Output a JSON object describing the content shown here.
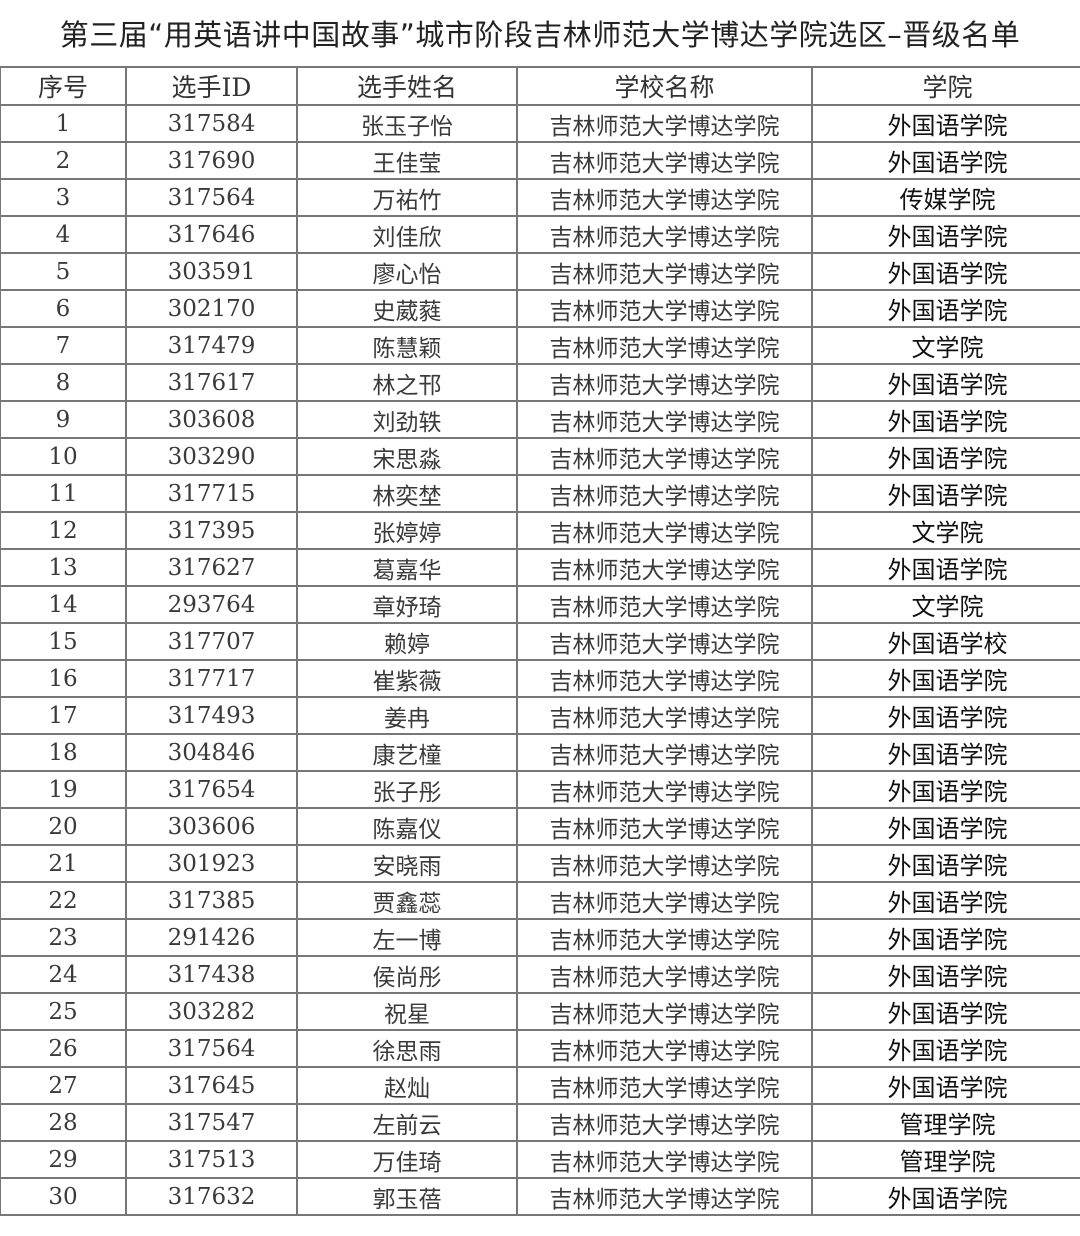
{
  "title": "第三届“用英语讲中国故事”城市阶段吉林师范大学博达学院选区–晋级名单",
  "columns": [
    "序号",
    "选手ID",
    "选手姓名",
    "学校名称",
    "学院"
  ],
  "rows": [
    [
      "1",
      "317584",
      "张玉子怡",
      "吉林师范大学博达学院",
      "外国语学院"
    ],
    [
      "2",
      "317690",
      "王佳莹",
      "吉林师范大学博达学院",
      "外国语学院"
    ],
    [
      "3",
      "317564",
      "万祐竹",
      "吉林师范大学博达学院",
      "传媒学院"
    ],
    [
      "4",
      "317646",
      "刘佳欣",
      "吉林师范大学博达学院",
      "外国语学院"
    ],
    [
      "5",
      "303591",
      "廖心怡",
      "吉林师范大学博达学院",
      "外国语学院"
    ],
    [
      "6",
      "302170",
      "史葳蕤",
      "吉林师范大学博达学院",
      "外国语学院"
    ],
    [
      "7",
      "317479",
      "陈慧颖",
      "吉林师范大学博达学院",
      "文学院"
    ],
    [
      "8",
      "317617",
      "林之邗",
      "吉林师范大学博达学院",
      "外国语学院"
    ],
    [
      "9",
      "303608",
      "刘劲轶",
      "吉林师范大学博达学院",
      "外国语学院"
    ],
    [
      "10",
      "303290",
      "宋思淼",
      "吉林师范大学博达学院",
      "外国语学院"
    ],
    [
      "11",
      "317715",
      "林奕埜",
      "吉林师范大学博达学院",
      "外国语学院"
    ],
    [
      "12",
      "317395",
      "张婷婷",
      "吉林师范大学博达学院",
      "文学院"
    ],
    [
      "13",
      "317627",
      "葛嘉华",
      "吉林师范大学博达学院",
      "外国语学院"
    ],
    [
      "14",
      "293764",
      "章妤琦",
      "吉林师范大学博达学院",
      "文学院"
    ],
    [
      "15",
      "317707",
      "赖婷",
      "吉林师范大学博达学院",
      "外国语学校"
    ],
    [
      "16",
      "317717",
      "崔紫薇",
      "吉林师范大学博达学院",
      "外国语学院"
    ],
    [
      "17",
      "317493",
      "姜冉",
      "吉林师范大学博达学院",
      "外国语学院"
    ],
    [
      "18",
      "304846",
      "康艺橦",
      "吉林师范大学博达学院",
      "外国语学院"
    ],
    [
      "19",
      "317654",
      "张子彤",
      "吉林师范大学博达学院",
      "外国语学院"
    ],
    [
      "20",
      "303606",
      "陈嘉仪",
      "吉林师范大学博达学院",
      "外国语学院"
    ],
    [
      "21",
      "301923",
      "安晓雨",
      "吉林师范大学博达学院",
      "外国语学院"
    ],
    [
      "22",
      "317385",
      "贾鑫蕊",
      "吉林师范大学博达学院",
      "外国语学院"
    ],
    [
      "23",
      "291426",
      "左一博",
      "吉林师范大学博达学院",
      "外国语学院"
    ],
    [
      "24",
      "317438",
      "侯尚彤",
      "吉林师范大学博达学院",
      "外国语学院"
    ],
    [
      "25",
      "303282",
      "祝星",
      "吉林师范大学博达学院",
      "外国语学院"
    ],
    [
      "26",
      "317564",
      "徐思雨",
      "吉林师范大学博达学院",
      "外国语学院"
    ],
    [
      "27",
      "317645",
      "赵灿",
      "吉林师范大学博达学院",
      "外国语学院"
    ],
    [
      "28",
      "317547",
      "左前云",
      "吉林师范大学博达学院",
      "管理学院"
    ],
    [
      "29",
      "317513",
      "万佳琦",
      "吉林师范大学博达学院",
      "管理学院"
    ],
    [
      "30",
      "317632",
      "郭玉蓓",
      "吉林师范大学博达学院",
      "外国语学院"
    ]
  ]
}
